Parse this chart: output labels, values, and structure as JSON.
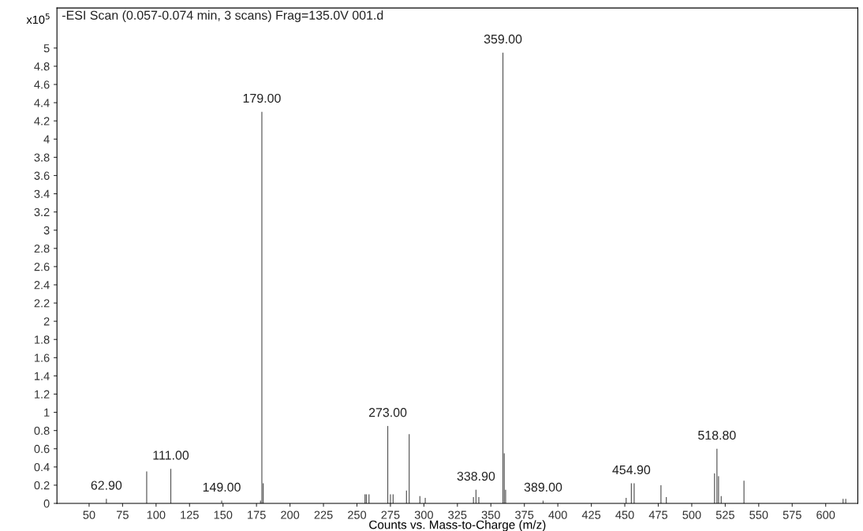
{
  "chart_data": {
    "type": "bar",
    "title": "-ESI Scan (0.057-0.074 min, 3 scans) Frag=135.0V 001.d",
    "ylabel": "x10$^{5}$",
    "xlabel": "Counts vs. Mass-to-Charge (m/z)",
    "x": [
      62.9,
      93,
      111,
      149,
      178,
      179,
      180,
      256,
      257,
      259,
      273,
      275,
      277,
      287,
      289,
      297,
      301,
      337,
      338.9,
      341,
      359,
      360,
      361,
      389,
      451,
      454.9,
      457,
      477,
      481,
      517,
      518.8,
      520,
      522,
      539,
      613,
      615
    ],
    "values": [
      0.05,
      0.35,
      0.38,
      0.03,
      0.03,
      4.3,
      0.22,
      0.1,
      0.1,
      0.1,
      0.85,
      0.1,
      0.1,
      0.14,
      0.76,
      0.08,
      0.06,
      0.07,
      0.15,
      0.07,
      4.95,
      0.55,
      0.15,
      0.03,
      0.06,
      0.22,
      0.22,
      0.2,
      0.07,
      0.33,
      0.6,
      0.3,
      0.08,
      0.25,
      0.05,
      0.05
    ],
    "color": "#555555",
    "xlim": [
      26,
      624
    ],
    "xticks": [
      50,
      75,
      100,
      125,
      150,
      175,
      200,
      225,
      250,
      275,
      300,
      325,
      350,
      375,
      400,
      425,
      450,
      475,
      500,
      525,
      550,
      575,
      600
    ],
    "ylim": [
      0,
      5.44
    ],
    "yticks": [
      0,
      0.2,
      0.4,
      0.6,
      0.8,
      1,
      1.2,
      1.4,
      1.6,
      1.8,
      2,
      2.2,
      2.4,
      2.6,
      2.8,
      3,
      3.2,
      3.4,
      3.6,
      3.8,
      4,
      4.2,
      4.4,
      4.6,
      4.8,
      5
    ],
    "annotations": [
      {
        "text": "62.90",
        "x": 62.9,
        "y": 0.05
      },
      {
        "text": "111.00",
        "x": 111,
        "y": 0.38
      },
      {
        "text": "149.00",
        "x": 149,
        "y": 0.03
      },
      {
        "text": "179.00",
        "x": 179,
        "y": 4.3
      },
      {
        "text": "273.00",
        "x": 273,
        "y": 0.85
      },
      {
        "text": "338.90",
        "x": 338.9,
        "y": 0.15
      },
      {
        "text": "359.00",
        "x": 359,
        "y": 4.95
      },
      {
        "text": "389.00",
        "x": 389,
        "y": 0.03
      },
      {
        "text": "454.90",
        "x": 454.9,
        "y": 0.22
      },
      {
        "text": "518.80",
        "x": 518.8,
        "y": 0.6
      }
    ],
    "grid": false
  }
}
